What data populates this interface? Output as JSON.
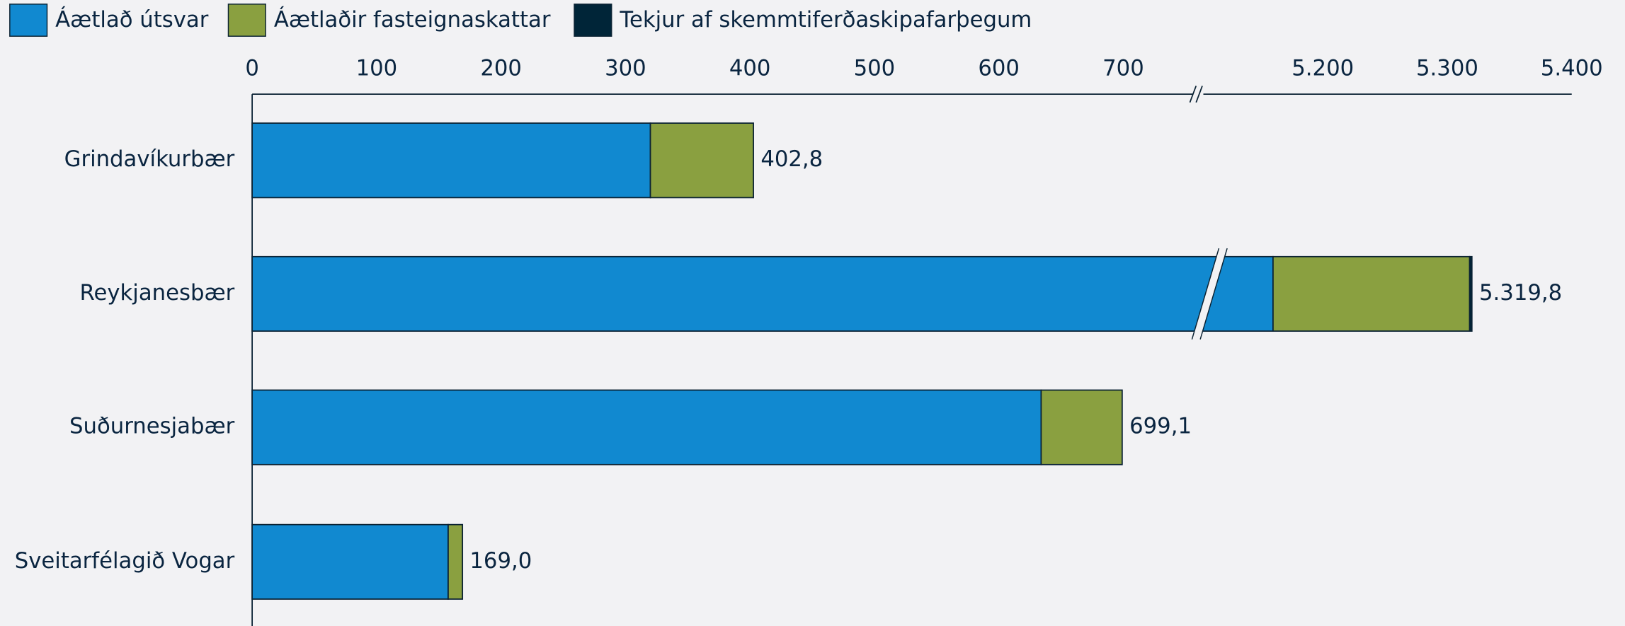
{
  "chart_data": {
    "type": "stacked-barh",
    "categories": [
      "Grindavíkurbær",
      "Reykjanesbær",
      "Suðurnesjabær",
      "Sveitarfélagið Vogar"
    ],
    "series": [
      {
        "name": "Áætlað útsvar",
        "color": "#1189d0",
        "values": [
          320,
          5160,
          634,
          157.5
        ]
      },
      {
        "name": "Áætlaðir fasteignaskattar",
        "color": "#8aa040",
        "values": [
          82.8,
          158,
          65.1,
          11.5
        ]
      },
      {
        "name": "Tekjur af skemmtiferðaskipafarþegum",
        "color": "#002538",
        "values": [
          0,
          1.8,
          0,
          0
        ]
      }
    ],
    "total_labels": [
      "402,8",
      "5.319,8",
      "699,1",
      "169,0"
    ],
    "xlim": [
      0,
      5400
    ],
    "xbreak": [
      756,
      5104
    ],
    "xticks": [
      0,
      100,
      200,
      300,
      400,
      500,
      600,
      700,
      {
        "value": 5200,
        "label": "5.200"
      },
      {
        "value": 5300,
        "label": "5.300"
      },
      {
        "value": 5400,
        "label": "5.400"
      }
    ],
    "legend": "top-left"
  }
}
